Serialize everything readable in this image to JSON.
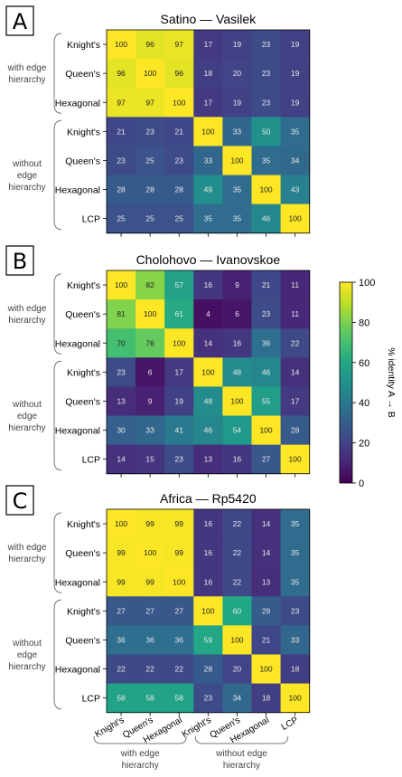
{
  "chart_data": [
    {
      "type": "heatmap",
      "panel": "A",
      "title": "Satino — Vasilek",
      "rows": [
        "Knight's",
        "Queen's",
        "Hexagonal",
        "Knight's",
        "Queen's",
        "Hexagonal",
        "LCP"
      ],
      "columns": [
        "Knight's",
        "Queen's",
        "Hexagonal",
        "Knight's",
        "Queen's",
        "Hexagonal",
        "LCP"
      ],
      "values": [
        [
          100,
          96,
          97,
          17,
          19,
          23,
          19
        ],
        [
          96,
          100,
          96,
          18,
          20,
          23,
          19
        ],
        [
          97,
          97,
          100,
          17,
          19,
          23,
          19
        ],
        [
          21,
          23,
          21,
          100,
          33,
          50,
          35
        ],
        [
          23,
          25,
          23,
          33,
          100,
          35,
          34
        ],
        [
          28,
          28,
          28,
          49,
          35,
          100,
          43
        ],
        [
          25,
          25,
          25,
          35,
          35,
          46,
          100
        ]
      ],
      "row_groups": [
        {
          "label": "with edge hierarchy",
          "rows": [
            0,
            2
          ]
        },
        {
          "label": "without edge hierarchy",
          "rows": [
            3,
            6
          ]
        }
      ]
    },
    {
      "type": "heatmap",
      "panel": "B",
      "title": "Cholohovo — Ivanovskoe",
      "rows": [
        "Knight's",
        "Queen's",
        "Hexagonal",
        "Knight's",
        "Queen's",
        "Hexagonal",
        "LCP"
      ],
      "columns": [
        "Knight's",
        "Queen's",
        "Hexagonal",
        "Knight's",
        "Queen's",
        "Hexagonal",
        "LCP"
      ],
      "values": [
        [
          100,
          82,
          57,
          16,
          9,
          21,
          11
        ],
        [
          81,
          100,
          61,
          4,
          6,
          23,
          11
        ],
        [
          70,
          76,
          100,
          14,
          16,
          36,
          22
        ],
        [
          23,
          6,
          17,
          100,
          48,
          46,
          14
        ],
        [
          13,
          9,
          19,
          48,
          100,
          55,
          17
        ],
        [
          30,
          33,
          41,
          46,
          54,
          100,
          28
        ],
        [
          14,
          15,
          23,
          13,
          16,
          27,
          100
        ]
      ],
      "row_groups": [
        {
          "label": "with edge hierarchy",
          "rows": [
            0,
            2
          ]
        },
        {
          "label": "without edge hierarchy",
          "rows": [
            3,
            6
          ]
        }
      ]
    },
    {
      "type": "heatmap",
      "panel": "C",
      "title": "Africa — Rp5420",
      "rows": [
        "Knight's",
        "Queen's",
        "Hexagonal",
        "Knight's",
        "Queen's",
        "Hexagonal",
        "LCP"
      ],
      "columns": [
        "Knight's",
        "Queen's",
        "Hexagonal",
        "Knight's",
        "Queen's",
        "Hexagonal",
        "LCP"
      ],
      "values": [
        [
          100,
          99,
          99,
          16,
          22,
          14,
          35
        ],
        [
          99,
          100,
          99,
          16,
          22,
          14,
          35
        ],
        [
          99,
          99,
          100,
          16,
          22,
          13,
          35
        ],
        [
          27,
          27,
          27,
          100,
          60,
          29,
          23
        ],
        [
          36,
          36,
          36,
          59,
          100,
          21,
          33
        ],
        [
          22,
          22,
          22,
          28,
          20,
          100,
          18
        ],
        [
          58,
          58,
          58,
          23,
          34,
          18,
          100
        ]
      ],
      "row_groups": [
        {
          "label": "with edge hierarchy",
          "rows": [
            0,
            2
          ]
        },
        {
          "label": "without edge hierarchy",
          "rows": [
            3,
            6
          ]
        }
      ],
      "column_groups": [
        {
          "label": "with edge hierarchy",
          "cols": [
            0,
            2
          ]
        },
        {
          "label": "without edge hierarchy",
          "cols": [
            3,
            6
          ]
        }
      ]
    }
  ],
  "colorbar": {
    "label": "% identity A → B",
    "colormap": "viridis",
    "range": [
      0,
      100
    ],
    "ticks": [
      0,
      20,
      40,
      60,
      80,
      100
    ]
  }
}
